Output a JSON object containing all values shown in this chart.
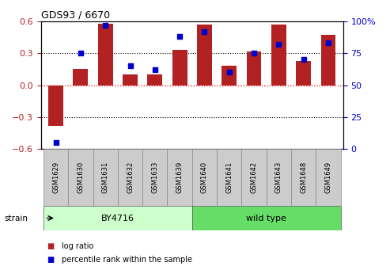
{
  "title": "GDS93 / 6670",
  "samples": [
    "GSM1629",
    "GSM1630",
    "GSM1631",
    "GSM1632",
    "GSM1633",
    "GSM1639",
    "GSM1640",
    "GSM1641",
    "GSM1642",
    "GSM1643",
    "GSM1648",
    "GSM1649"
  ],
  "log_ratio": [
    -0.38,
    0.15,
    0.58,
    0.1,
    0.1,
    0.33,
    0.57,
    0.18,
    0.32,
    0.57,
    0.23,
    0.47
  ],
  "percentile": [
    5,
    75,
    97,
    65,
    62,
    88,
    92,
    60,
    75,
    82,
    70,
    83
  ],
  "bar_color": "#b22222",
  "square_color": "#0000cc",
  "ylim_left": [
    -0.6,
    0.6
  ],
  "ylim_right": [
    0,
    100
  ],
  "yticks_left": [
    -0.6,
    -0.3,
    0.0,
    0.3,
    0.6
  ],
  "yticks_right": [
    0,
    25,
    50,
    75,
    100
  ],
  "ytick_labels_right": [
    "0",
    "25",
    "50",
    "75",
    "100%"
  ],
  "groups": [
    {
      "label": "BY4716",
      "start": 0,
      "end": 6,
      "color": "#ccffcc"
    },
    {
      "label": "wild type",
      "start": 6,
      "end": 12,
      "color": "#66dd66"
    }
  ],
  "strain_label": "strain",
  "legend_bar_label": "log ratio",
  "legend_pct_label": "percentile rank within the sample",
  "zero_line_color": "#ff0000",
  "dotted_line_color": "#000000",
  "bar_width": 0.6,
  "label_box_color": "#cccccc",
  "label_box_edge": "#888888"
}
